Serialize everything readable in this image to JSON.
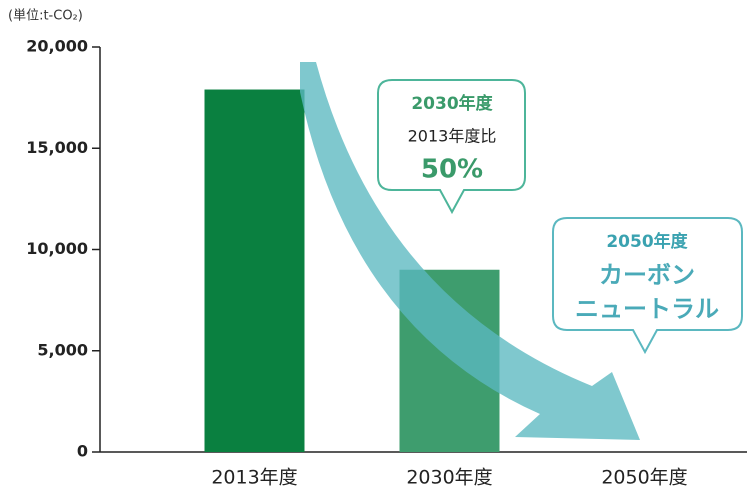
{
  "chart_data": {
    "type": "bar",
    "unit_label": "(単位:t-CO₂)",
    "categories": [
      "2013年度",
      "2030年度",
      "2050年度"
    ],
    "values": [
      17900,
      9000,
      0
    ],
    "colors": [
      "#0a8040",
      "#3e9d6e",
      "#3e9d6e"
    ],
    "ylim": [
      0,
      20000
    ],
    "yticks": [
      0,
      {
        "value": 5000,
        "label": "5,000"
      },
      {
        "value": 10000,
        "label": "10,000"
      },
      {
        "value": 15000,
        "label": "15,000"
      },
      {
        "value": 20000,
        "label": "20,000"
      }
    ],
    "grid": false,
    "annotations": [
      {
        "lines": [
          "2030年度",
          "2013年度比",
          "50%"
        ]
      },
      {
        "lines": [
          "2050年度",
          "カーボン",
          "ニュートラル"
        ]
      }
    ]
  }
}
